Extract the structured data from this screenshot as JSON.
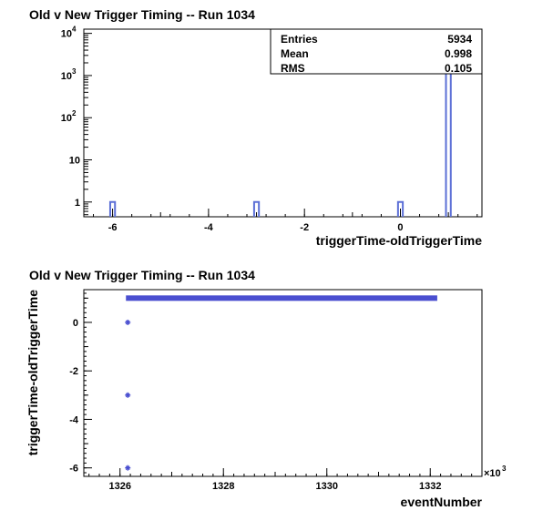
{
  "chart_data": [
    {
      "type": "histogram",
      "title": "Old v New Trigger Timing -- Run 1034",
      "xlabel": "triggerTime-oldTriggerTime",
      "ylabel": "",
      "xlim": [
        -6.6,
        1.7
      ],
      "ylim_log10": [
        -0.35,
        4.1
      ],
      "log_y": true,
      "x_ticks": [
        -6,
        -4,
        -2,
        0
      ],
      "y_ticks": [
        {
          "value": 1,
          "label": "1"
        },
        {
          "value": 10,
          "label": "10"
        },
        {
          "value": 100,
          "label": "10",
          "exp": "2"
        },
        {
          "value": 1000,
          "label": "10",
          "exp": "3"
        },
        {
          "value": 10000,
          "label": "10",
          "exp": "4"
        }
      ],
      "bins": [
        {
          "x": -6,
          "count": 1
        },
        {
          "x": -3,
          "count": 1
        },
        {
          "x": 0,
          "count": 1
        },
        {
          "x": 1,
          "count": 5931
        }
      ],
      "bin_width": 0.1,
      "stats": {
        "rows": [
          {
            "label": "Entries",
            "value": "5934"
          },
          {
            "label": "Mean",
            "value": "0.998"
          },
          {
            "label": "RMS",
            "value": "0.105"
          }
        ]
      },
      "color": "#5b6fd6"
    },
    {
      "type": "scatter",
      "title": "Old v New Trigger Timing -- Run 1034",
      "xlabel": "eventNumber",
      "ylabel": "triggerTime-oldTriggerTime",
      "x_multiplier": "×10",
      "x_multiplier_exp": "3",
      "xlim": [
        1325.3,
        1333.0
      ],
      "ylim": [
        -6.35,
        1.35
      ],
      "x_ticks": [
        1326,
        1328,
        1330,
        1332
      ],
      "y_ticks": [
        -6,
        -4,
        -2,
        0
      ],
      "band": {
        "x_start": 1326.15,
        "x_end": 1332.1,
        "y": 1
      },
      "points": [
        {
          "x": 1326.15,
          "y": 0
        },
        {
          "x": 1326.15,
          "y": -3
        },
        {
          "x": 1326.15,
          "y": -6
        }
      ],
      "color": "#4a4fd0"
    }
  ]
}
